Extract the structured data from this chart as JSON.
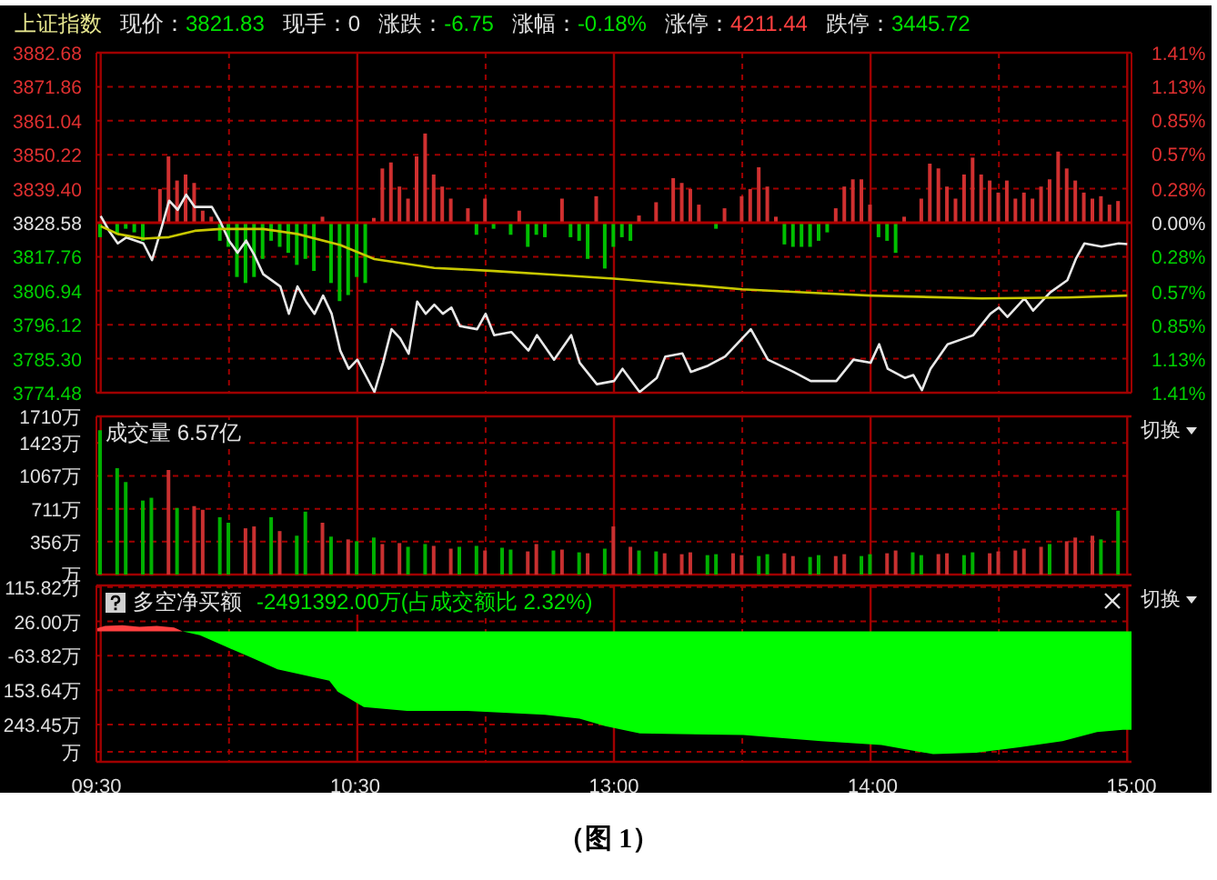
{
  "chart_data": [
    {
      "type": "line",
      "title": "上证指数",
      "annotations": [
        "现价：3821.83",
        "现手：0",
        "涨跌：-6.75",
        "涨幅：-0.18%",
        "涨停：4211.44",
        "跌停：3445.72"
      ],
      "categories": [
        null,
        null,
        null,
        null,
        null,
        null,
        null,
        null,
        null,
        null,
        null,
        null,
        null,
        null,
        null,
        null,
        null,
        null,
        null,
        null,
        null,
        null,
        null,
        null,
        null,
        null,
        null,
        null,
        null,
        null,
        null,
        null,
        null,
        null,
        null,
        null,
        null,
        null,
        null,
        null,
        null,
        null,
        null,
        null,
        null,
        null,
        null,
        null,
        null,
        null,
        null,
        null,
        null,
        null,
        null,
        null,
        null,
        null,
        null,
        null,
        null,
        null,
        null,
        null,
        null,
        null,
        null,
        null,
        null,
        null,
        null,
        null,
        null,
        null,
        null,
        null,
        null,
        null,
        null,
        null,
        null,
        null,
        null,
        null,
        null,
        null,
        null,
        null,
        null,
        null,
        null,
        null,
        null,
        null,
        null,
        null,
        null,
        null,
        null,
        null,
        null,
        null,
        null,
        null,
        null,
        null,
        null,
        null,
        null,
        null,
        null,
        null,
        null,
        null,
        null,
        null,
        null,
        null,
        null,
        null,
        null
      ],
      "ylim": [
        3774.48,
        3882.68
      ],
      "yticks": [
        {
          "value": 3774.48,
          "label": "3774.48"
        },
        {
          "value": 3785.3,
          "label": "3785.30"
        },
        {
          "value": 3796.12,
          "label": "3796.12"
        },
        {
          "value": 3806.94,
          "label": "3806.94"
        },
        {
          "value": 3817.76,
          "label": "3817.76"
        },
        {
          "value": 3828.58,
          "label": "3828.58"
        },
        {
          "value": 3839.4,
          "label": "3839.40"
        },
        {
          "value": 3850.22,
          "label": "3850.22"
        },
        {
          "value": 3861.04,
          "label": "3861.04"
        },
        {
          "value": 3871.86,
          "label": "3871.86"
        },
        {
          "value": 3882.68,
          "label": "3882.68"
        }
      ],
      "y2lim": [
        -1.41,
        1.41
      ],
      "y2ticks": [
        {
          "value": -1.41,
          "label": "1.41%"
        },
        {
          "value": -1.13,
          "label": "1.13%"
        },
        {
          "value": -0.85,
          "label": "0.85%"
        },
        {
          "value": -0.57,
          "label": "0.57%"
        },
        {
          "value": -0.28,
          "label": "0.28%"
        },
        {
          "value": 0,
          "label": "0.00%"
        },
        {
          "value": 0.28,
          "label": "0.28%"
        },
        {
          "value": 0.57,
          "label": "0.57%"
        },
        {
          "value": 0.85,
          "label": "0.85%"
        },
        {
          "value": 1.13,
          "label": "1.13%"
        },
        {
          "value": 1.41,
          "label": "1.41%"
        }
      ],
      "tick_labels": "y",
      "grid": true,
      "ref_lines": [
        {
          "axis": "y",
          "value": 3828.58,
          "color": "#b00000"
        }
      ],
      "series": [
        {
          "type": "bar",
          "axis": "y2",
          "color": "#d03030",
          "values": [
            null,
            null,
            null,
            null,
            null,
            null,
            null,
            0.28,
            0.55,
            0.35,
            0.4,
            0.33,
            0.1,
            0.05,
            null,
            null,
            null,
            null,
            null,
            null,
            null,
            null,
            null,
            null,
            null,
            null,
            0.05,
            null,
            null,
            null,
            null,
            null,
            0.04,
            0.45,
            0.5,
            0.3,
            0.2,
            0.55,
            0.74,
            0.4,
            0.3,
            0.2,
            null,
            0.12,
            null,
            0.2,
            null,
            null,
            null,
            0.1,
            null,
            null,
            null,
            null,
            0.2,
            null,
            null,
            null,
            0.22,
            null,
            null,
            null,
            null,
            0.06,
            null,
            0.17,
            null,
            0.37,
            0.33,
            0.28,
            0.15,
            null,
            null,
            0.12,
            null,
            0.22,
            0.28,
            0.46,
            0.3,
            0.05,
            null,
            null,
            null,
            null,
            null,
            null,
            0.12,
            0.3,
            0.36,
            0.36,
            0.15,
            null,
            null,
            null,
            0.05,
            null,
            0.2,
            0.49,
            0.45,
            0.3,
            0.2,
            0.4,
            0.54,
            0.4,
            0.35,
            0.25,
            0.35,
            0.2,
            0.25,
            0.2,
            0.3,
            0.36,
            0.59,
            0.45,
            0.35,
            0.25,
            0.2,
            0.22,
            0.15,
            0.18,
            null
          ]
        },
        {
          "type": "bar",
          "axis": "y2",
          "color": "#00c000",
          "values": [
            -0.12,
            null,
            -0.1,
            -0.05,
            -0.08,
            -0.15,
            null,
            null,
            null,
            null,
            null,
            null,
            null,
            null,
            -0.15,
            -0.2,
            -0.45,
            -0.5,
            -0.45,
            -0.3,
            -0.15,
            -0.2,
            -0.25,
            -0.35,
            -0.3,
            -0.4,
            null,
            -0.5,
            -0.65,
            -0.6,
            -0.45,
            -0.5,
            null,
            null,
            null,
            null,
            null,
            null,
            null,
            null,
            null,
            null,
            null,
            null,
            -0.1,
            null,
            -0.05,
            null,
            -0.1,
            null,
            -0.2,
            -0.1,
            -0.12,
            null,
            null,
            -0.12,
            -0.15,
            -0.3,
            null,
            -0.38,
            -0.2,
            -0.12,
            -0.15,
            null,
            null,
            null,
            null,
            null,
            null,
            null,
            null,
            null,
            -0.05,
            null,
            null,
            null,
            null,
            null,
            null,
            null,
            -0.18,
            -0.2,
            -0.2,
            -0.2,
            -0.15,
            -0.08,
            null,
            null,
            null,
            null,
            null,
            -0.12,
            -0.15,
            -0.25,
            null,
            null,
            null,
            null,
            null,
            null,
            null,
            null,
            null,
            null,
            null,
            null,
            null,
            null,
            null,
            null,
            null,
            null,
            null,
            null,
            null,
            null,
            null,
            null,
            null,
            null,
            null
          ]
        },
        {
          "color": "#e8e8e8",
          "values": [
            3830.7,
            3825.9,
            3822,
            3823.9,
            null,
            3822,
            3816.7,
            3825.9,
            3835.6,
            3832.7,
            3837.5,
            3833.6,
            null,
            3833.6,
            3828.8,
            3822.9,
            3819,
            3822.9,
            3818.1,
            3812.2,
            null,
            3808.3,
            3799.6,
            3808.3,
            3803.5,
            3799.6,
            3805.4,
            3799.6,
            3787.9,
            3782.1,
            3785,
            null,
            3774.7,
            3784,
            3794.7,
            3791.8,
            3786.9,
            3803.5,
            3799.6,
            3802.5,
            3799.6,
            3801.6,
            3795.7,
            null,
            3794.7,
            3799.6,
            3792.8,
            null,
            3793.8,
            null,
            3787.9,
            3792.8,
            null,
            3785,
            null,
            3792.8,
            3784,
            null,
            3777.2,
            null,
            3778.2,
            3782.1,
            null,
            3774.7,
            null,
            3779.2,
            3786,
            null,
            3787,
            3781.1,
            null,
            3783.1,
            null,
            3786,
            null,
            3791.8,
            3794.7,
            null,
            3785,
            null,
            null,
            3781.1,
            null,
            3778.2,
            null,
            null,
            3778.2,
            null,
            3785,
            null,
            3784,
            3789.9,
            3782.1,
            null,
            3779.2,
            3780.1,
            3775.3,
            3782.1,
            null,
            3789.9,
            null,
            3791.8,
            3792.8,
            null,
            3799.6,
            3801.6,
            3798.6,
            null,
            3804.5,
            3800.6,
            null,
            3806.4,
            null,
            3810.3,
            3817.1,
            3822,
            null,
            3821,
            null,
            3822,
            3821.8
          ]
        },
        {
          "color": "#c8c800",
          "values": [
            3827.5,
            null,
            3825,
            null,
            null,
            3823.5,
            null,
            null,
            3824,
            null,
            null,
            3826,
            null,
            null,
            3826.6,
            null,
            null,
            null,
            null,
            3826.6,
            null,
            null,
            null,
            3825,
            null,
            null,
            null,
            null,
            3821.5,
            null,
            null,
            null,
            3817,
            null,
            null,
            null,
            null,
            null,
            null,
            3814.2,
            null,
            null,
            null,
            null,
            null,
            null,
            3813.2,
            null,
            null,
            null,
            null,
            null,
            null,
            3812,
            null,
            null,
            null,
            null,
            null,
            null,
            3810.8,
            null,
            null,
            null,
            null,
            null,
            null,
            null,
            3809,
            null,
            null,
            null,
            null,
            null,
            null,
            3807.4,
            null,
            null,
            null,
            null,
            null,
            null,
            null,
            3806.3,
            null,
            null,
            null,
            null,
            null,
            null,
            3805.4,
            null,
            null,
            null,
            null,
            null,
            null,
            null,
            null,
            null,
            null,
            null,
            null,
            3804.5,
            null,
            null,
            null,
            null,
            null,
            null,
            null,
            null,
            null,
            3804.8,
            null,
            null,
            null,
            null,
            null,
            null,
            3805.4
          ]
        }
      ]
    },
    {
      "type": "bar",
      "title": "成交量 6.57亿",
      "annotations": [
        "切换"
      ],
      "categories": [
        null,
        null,
        null,
        null,
        null,
        null,
        null,
        null,
        null,
        null,
        null,
        null,
        null,
        null,
        null,
        null,
        null,
        null,
        null,
        null,
        null,
        null,
        null,
        null,
        null,
        null,
        null,
        null,
        null,
        null,
        null,
        null,
        null,
        null,
        null,
        null,
        null,
        null,
        null,
        null,
        null,
        null,
        null,
        null,
        null,
        null,
        null,
        null,
        null,
        null,
        null,
        null,
        null,
        null,
        null,
        null,
        null,
        null,
        null,
        null,
        null,
        null,
        null,
        null,
        null,
        null,
        null,
        null,
        null,
        null,
        null,
        null,
        null,
        null,
        null,
        null,
        null,
        null,
        null,
        null,
        null,
        null,
        null,
        null,
        null,
        null,
        null,
        null,
        null,
        null,
        null,
        null,
        null,
        null,
        null,
        null,
        null,
        null,
        null,
        null,
        null,
        null,
        null,
        null,
        null,
        null,
        null,
        null,
        null,
        null,
        null,
        null,
        null,
        null,
        null,
        null,
        null,
        null,
        null,
        null,
        null
      ],
      "ylim": [
        0,
        1710
      ],
      "yticks": [
        {
          "value": 0,
          "label": "万"
        },
        {
          "value": 356,
          "label": "356万"
        },
        {
          "value": 711,
          "label": "711万"
        },
        {
          "value": 1067,
          "label": "1067万"
        },
        {
          "value": 1423,
          "label": "1423万"
        },
        {
          "value": 1710,
          "label": "1710万"
        }
      ],
      "tick_labels": "y",
      "grid": true,
      "values": [
        1560,
        null,
        1150,
        1000,
        null,
        800,
        830,
        null,
        1130,
        720,
        null,
        740,
        700,
        null,
        620,
        560,
        null,
        500,
        520,
        null,
        620,
        470,
        null,
        420,
        680,
        null,
        560,
        410,
        null,
        380,
        360,
        null,
        400,
        330,
        null,
        340,
        300,
        null,
        330,
        310,
        null,
        280,
        300,
        null,
        310,
        260,
        null,
        290,
        270,
        null,
        250,
        330,
        null,
        260,
        270,
        null,
        240,
        230,
        null,
        280,
        520,
        null,
        300,
        260,
        null,
        250,
        230,
        null,
        220,
        240,
        null,
        210,
        220,
        null,
        230,
        210,
        null,
        200,
        220,
        null,
        230,
        200,
        null,
        190,
        210,
        null,
        200,
        220,
        null,
        200,
        220,
        null,
        230,
        260,
        null,
        240,
        210,
        null,
        220,
        230,
        null,
        210,
        240,
        null,
        230,
        250,
        null,
        260,
        280,
        null,
        300,
        330,
        null,
        360,
        400,
        null,
        420,
        380,
        null,
        690,
        null
      ],
      "colors": [
        "#00b000",
        null,
        "#00b000",
        "#00b000",
        null,
        "#00b000",
        "#00b000",
        null,
        "#c83030",
        "#00b000",
        null,
        "#c83030",
        "#c83030",
        null,
        "#00b000",
        "#00b000",
        null,
        "#c83030",
        "#c83030",
        null,
        "#00b000",
        "#c83030",
        null,
        "#00b000",
        "#00b000",
        null,
        "#c83030",
        "#00b000",
        null,
        "#c83030",
        "#00b000",
        null,
        "#00b000",
        "#c83030",
        null,
        "#c83030",
        "#00b000",
        null,
        "#00b000",
        "#c83030",
        null,
        "#c83030",
        "#00b000",
        null,
        "#00b000",
        "#c83030",
        null,
        "#00b000",
        "#00b000",
        null,
        "#c83030",
        "#c83030",
        null,
        "#00b000",
        "#c83030",
        null,
        "#00b000",
        "#c83030",
        null,
        "#00b000",
        "#c83030",
        null,
        "#c83030",
        "#00b000",
        null,
        "#00b000",
        "#c83030",
        null,
        "#c83030",
        "#c83030",
        null,
        "#00b000",
        "#00b000",
        null,
        "#c83030",
        "#c83030",
        null,
        "#00b000",
        "#00b000",
        null,
        "#c83030",
        "#c83030",
        null,
        "#00b000",
        "#00b000",
        null,
        "#c83030",
        "#c83030",
        null,
        "#00b000",
        "#00b000",
        null,
        "#c83030",
        "#c83030",
        null,
        "#00b000",
        "#00b000",
        null,
        "#c83030",
        "#c83030",
        null,
        "#00b000",
        "#00b000",
        null,
        "#c83030",
        "#c83030",
        null,
        "#c83030",
        "#c83030",
        null,
        "#c83030",
        "#00b000",
        null,
        "#c83030",
        "#c83030",
        null,
        "#c83030",
        "#00b000",
        null,
        "#00b000",
        null
      ]
    },
    {
      "type": "area",
      "title": "多空净买额",
      "subtitle": "-2491392.00万(占成交额比 2.32%)",
      "annotations": [
        "切换",
        "（图 1）"
      ],
      "categories": [
        "09:30",
        null,
        null,
        null,
        null,
        null,
        null,
        null,
        null,
        null,
        null,
        null,
        null,
        null,
        null,
        null,
        null,
        null,
        null,
        null,
        null,
        null,
        null,
        null,
        null,
        null,
        null,
        null,
        null,
        null,
        "10:30",
        null,
        null,
        null,
        null,
        null,
        null,
        null,
        null,
        null,
        null,
        null,
        null,
        null,
        null,
        null,
        null,
        null,
        null,
        null,
        null,
        null,
        null,
        null,
        null,
        null,
        null,
        null,
        null,
        null,
        "13:00",
        null,
        null,
        null,
        null,
        null,
        null,
        null,
        null,
        null,
        null,
        null,
        null,
        null,
        null,
        null,
        null,
        null,
        null,
        null,
        null,
        null,
        null,
        null,
        null,
        null,
        null,
        null,
        null,
        null,
        "14:00",
        null,
        null,
        null,
        null,
        null,
        null,
        null,
        null,
        null,
        null,
        null,
        null,
        null,
        null,
        null,
        null,
        null,
        null,
        null,
        null,
        null,
        null,
        null,
        null,
        null,
        null,
        null,
        null,
        null,
        "15:00"
      ],
      "ylim": [
        -341,
        120
      ],
      "yticks": [
        {
          "value": -315,
          "label": "万"
        },
        {
          "value": -243.45,
          "label": "243.45万"
        },
        {
          "value": -153.64,
          "label": "153.64万"
        },
        {
          "value": -63.82,
          "label": "-63.82万"
        },
        {
          "value": 26,
          "label": "26.00万"
        },
        {
          "value": 115.82,
          "label": "115.82万"
        }
      ],
      "grid": true,
      "series": [
        {
          "color": "#ff4040",
          "values": [
            8,
            14,
            null,
            16,
            null,
            12,
            null,
            14,
            null,
            10,
            0,
            null,
            null,
            null,
            null,
            null,
            null,
            null,
            null,
            null,
            null,
            null,
            null,
            null,
            null,
            null,
            null,
            null,
            null,
            null,
            null,
            null,
            null,
            null,
            null,
            null,
            null,
            null,
            null,
            null,
            null,
            null,
            null,
            null,
            null,
            null,
            null,
            null,
            null,
            null,
            null,
            null,
            null,
            null,
            null,
            null,
            null,
            null,
            null,
            null,
            null,
            null,
            null,
            null,
            null,
            null,
            null,
            null,
            null,
            null,
            null,
            null,
            null,
            null,
            null,
            null,
            null,
            null,
            null,
            null,
            null,
            null,
            null,
            null,
            null,
            null,
            null,
            null,
            null,
            null,
            null,
            null,
            null,
            null,
            null,
            null,
            null,
            null,
            null,
            null,
            null,
            null,
            null,
            null,
            null,
            null,
            null,
            null,
            null,
            null,
            null,
            null,
            null,
            null,
            null,
            null,
            null,
            null,
            null,
            null,
            null
          ]
        },
        {
          "color": "#00ff00",
          "values": [
            null,
            null,
            null,
            null,
            null,
            null,
            null,
            null,
            null,
            null,
            0,
            null,
            -10,
            null,
            null,
            -40,
            null,
            null,
            -69,
            null,
            null,
            -99,
            null,
            null,
            null,
            null,
            null,
            -129,
            -158,
            null,
            null,
            -198,
            null,
            null,
            null,
            null,
            -208,
            null,
            null,
            null,
            null,
            null,
            null,
            -208,
            null,
            null,
            null,
            null,
            null,
            null,
            null,
            null,
            -218,
            null,
            null,
            null,
            -228,
            null,
            null,
            -248,
            null,
            null,
            null,
            -267,
            null,
            null,
            null,
            null,
            null,
            null,
            null,
            null,
            null,
            null,
            null,
            -271,
            null,
            null,
            null,
            null,
            null,
            null,
            null,
            null,
            -287,
            null,
            null,
            null,
            null,
            null,
            null,
            -297,
            null,
            null,
            null,
            -313,
            null,
            -321,
            null,
            null,
            null,
            null,
            -317,
            null,
            null,
            null,
            null,
            -303,
            null,
            null,
            null,
            null,
            -287,
            null,
            null,
            null,
            -263,
            null,
            null,
            -257,
            -257
          ]
        }
      ]
    }
  ]
}
